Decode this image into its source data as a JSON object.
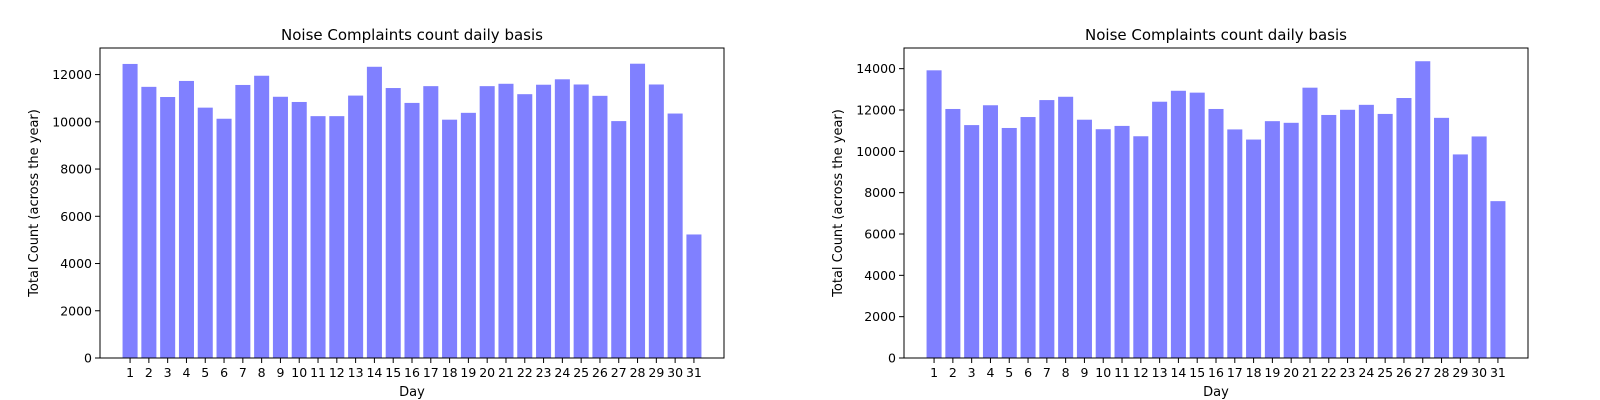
{
  "chart_data": [
    {
      "type": "bar",
      "title": "Noise Complaints count daily basis",
      "xlabel": "Day",
      "ylabel": "Total Count (across the year)",
      "ylim": [
        0,
        13125
      ],
      "yticks": [
        0,
        2000,
        4000,
        6000,
        8000,
        10000,
        12000
      ],
      "categories": [
        "1",
        "2",
        "3",
        "4",
        "5",
        "6",
        "7",
        "8",
        "9",
        "10",
        "11",
        "12",
        "13",
        "14",
        "15",
        "16",
        "17",
        "18",
        "19",
        "20",
        "21",
        "22",
        "23",
        "24",
        "25",
        "26",
        "27",
        "28",
        "29",
        "30",
        "31"
      ],
      "values": [
        12450,
        11480,
        11050,
        11730,
        10600,
        10130,
        11560,
        11950,
        11060,
        10840,
        10240,
        10240,
        11110,
        12330,
        11430,
        10800,
        11510,
        10090,
        10380,
        11510,
        11610,
        11170,
        11570,
        11800,
        11580,
        11100,
        10030,
        12460,
        11580,
        10350,
        5230
      ],
      "bar_color": "#8080ff",
      "grid": false
    },
    {
      "type": "bar",
      "title": "Noise Complaints count daily basis",
      "xlabel": "Day",
      "ylabel": "Total Count (across the year)",
      "ylim": [
        0,
        15000
      ],
      "yticks": [
        0,
        2000,
        4000,
        6000,
        8000,
        10000,
        12000,
        14000
      ],
      "categories": [
        "1",
        "2",
        "3",
        "4",
        "5",
        "6",
        "7",
        "8",
        "9",
        "10",
        "11",
        "12",
        "13",
        "14",
        "15",
        "16",
        "17",
        "18",
        "19",
        "20",
        "21",
        "22",
        "23",
        "24",
        "25",
        "26",
        "27",
        "28",
        "29",
        "30",
        "31"
      ],
      "values": [
        13920,
        12050,
        11270,
        12230,
        11130,
        11660,
        12480,
        12640,
        11530,
        11070,
        11230,
        10730,
        12400,
        12930,
        12840,
        12050,
        11060,
        10570,
        11460,
        11380,
        13080,
        11760,
        12010,
        12250,
        11810,
        12580,
        14360,
        11620,
        9850,
        10720,
        7590
      ],
      "bar_color": "#8080ff",
      "grid": false
    }
  ]
}
